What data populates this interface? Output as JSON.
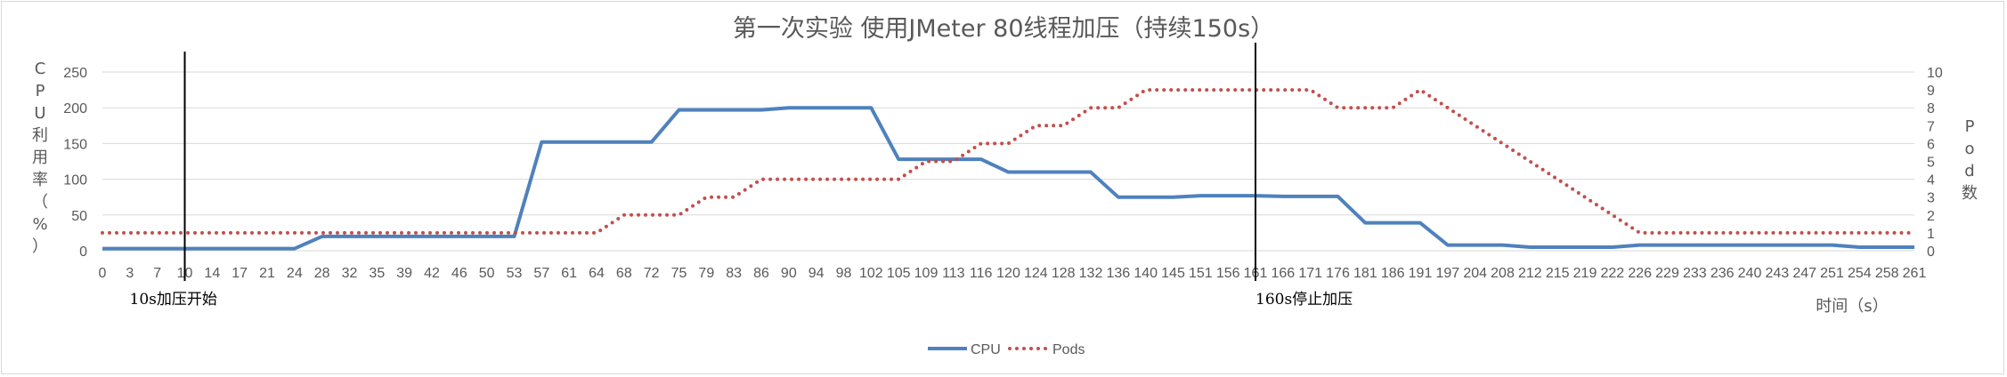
{
  "chart_data": {
    "type": "line",
    "title": "第一次实验 使用JMeter 80线程加压（持续150s）",
    "xlabel": "时间（s）",
    "ylabel_left": "CPU利用率（%）",
    "ylabel_right": "Pod数",
    "ylim_left": [
      0,
      250
    ],
    "yticks_left": [
      0,
      50,
      100,
      150,
      200,
      250
    ],
    "ylim_right": [
      0,
      10
    ],
    "yticks_right": [
      0,
      1,
      2,
      3,
      4,
      5,
      6,
      7,
      8,
      9,
      10
    ],
    "grid": true,
    "legend_position": "bottom",
    "x": [
      "0",
      "3",
      "7",
      "10",
      "14",
      "17",
      "21",
      "24",
      "28",
      "32",
      "35",
      "39",
      "42",
      "46",
      "50",
      "53",
      "57",
      "61",
      "64",
      "68",
      "72",
      "75",
      "79",
      "83",
      "86",
      "90",
      "94",
      "98",
      "102",
      "105",
      "109",
      "113",
      "116",
      "120",
      "124",
      "128",
      "132",
      "136",
      "140",
      "145",
      "151",
      "156",
      "161",
      "166",
      "171",
      "176",
      "181",
      "186",
      "191",
      "197",
      "204",
      "208",
      "212",
      "215",
      "219",
      "222",
      "226",
      "229",
      "233",
      "236",
      "240",
      "243",
      "247",
      "251",
      "254",
      "258",
      "261"
    ],
    "series": [
      {
        "name": "CPU",
        "color": "#4f81bd",
        "style": "solid",
        "axis": "left",
        "values": [
          3,
          3,
          3,
          3,
          3,
          3,
          3,
          3,
          20,
          20,
          20,
          20,
          20,
          20,
          20,
          20,
          152,
          152,
          152,
          152,
          152,
          197,
          197,
          197,
          197,
          200,
          200,
          200,
          200,
          128,
          128,
          128,
          128,
          110,
          110,
          110,
          110,
          75,
          75,
          75,
          77,
          77,
          77,
          76,
          76,
          76,
          39,
          39,
          39,
          8,
          8,
          8,
          5,
          5,
          5,
          5,
          8,
          8,
          8,
          8,
          8,
          8,
          8,
          8,
          5,
          5,
          5
        ]
      },
      {
        "name": "Pods",
        "color": "#c0504d",
        "style": "dotted",
        "axis": "right",
        "values": [
          1,
          1,
          1,
          1,
          1,
          1,
          1,
          1,
          1,
          1,
          1,
          1,
          1,
          1,
          1,
          1,
          1,
          1,
          1,
          2,
          2,
          2,
          3,
          3,
          4,
          4,
          4,
          4,
          4,
          4,
          5,
          5,
          6,
          6,
          7,
          7,
          8,
          8,
          9,
          9,
          9,
          9,
          9,
          9,
          9,
          8,
          8,
          8,
          9,
          8,
          7,
          6,
          5,
          4,
          3,
          2,
          1,
          1,
          1,
          1,
          1,
          1,
          1,
          1,
          1,
          1,
          1
        ]
      }
    ],
    "annotations": [
      {
        "text": "10s加压开始",
        "x": "10"
      },
      {
        "text": "160s停止加压",
        "x": "161"
      }
    ]
  }
}
